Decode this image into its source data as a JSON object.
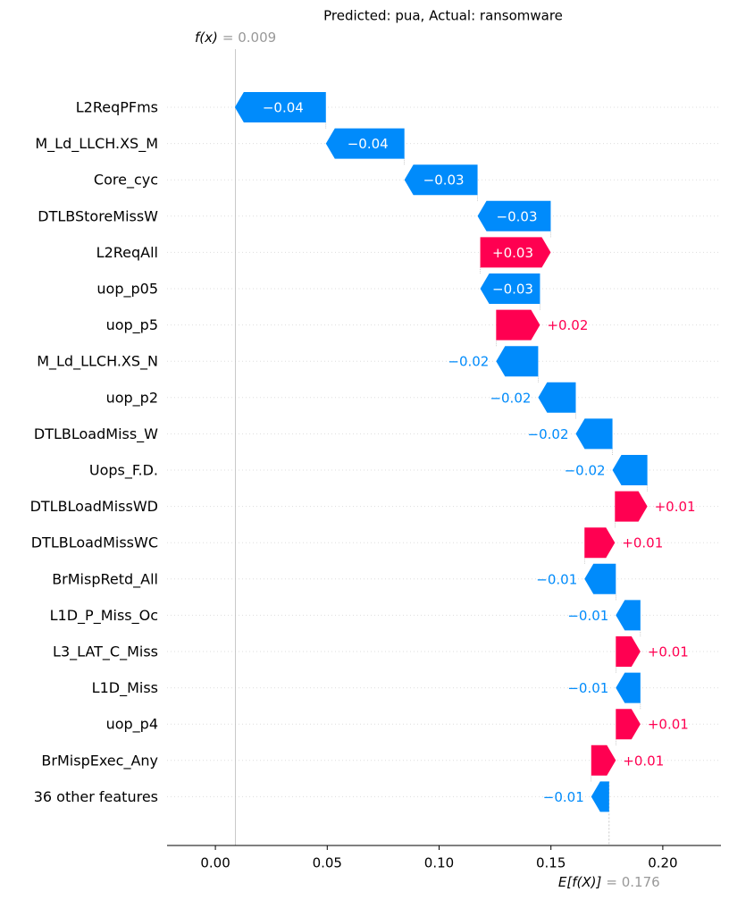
{
  "chart_data": {
    "type": "waterfall",
    "title": "Predicted: pua, Actual: ransomware",
    "output_name": "f(x)",
    "output_value": {
      "value": 0.009,
      "label": "= 0.009"
    },
    "base_name": "E[f(X)]",
    "base_value": {
      "value": 0.176,
      "label": "= 0.176"
    },
    "categories": [
      "L2ReqPFms",
      "M_Ld_LLCH.XS_M",
      "Core_cyc",
      "DTLBStoreMissW",
      "L2ReqAll",
      "uop_p05",
      "uop_p5",
      "M_Ld_LLCH.XS_N",
      "uop_p2",
      "DTLBLoadMiss_W",
      "Uops_F.D.",
      "DTLBLoadMissWD",
      "DTLBLoadMissWC",
      "BrMispRetd_All",
      "L1D_P_Miss_Oc",
      "L3_LAT_C_Miss",
      "L1D_Miss",
      "uop_p4",
      "BrMispExec_Any",
      "36 other features"
    ],
    "values": [
      -0.0407,
      -0.0351,
      -0.0327,
      -0.0327,
      0.0315,
      -0.0267,
      0.0196,
      -0.0188,
      -0.0168,
      -0.0164,
      -0.0156,
      0.0145,
      0.0136,
      -0.014,
      -0.011,
      0.011,
      -0.011,
      0.011,
      0.011,
      -0.008
    ],
    "value_labels": [
      "−0.04",
      "−0.04",
      "−0.03",
      "−0.03",
      "+0.03",
      "−0.03",
      "+0.02",
      "−0.02",
      "−0.02",
      "−0.02",
      "−0.02",
      "+0.01",
      "+0.01",
      "−0.01",
      "−0.01",
      "+0.01",
      "−0.01",
      "+0.01",
      "+0.01",
      "−0.01"
    ],
    "positive_color": "#ff0051",
    "negative_color": "#008bfb",
    "xlim": [
      -0.0216,
      0.226
    ],
    "xticks": [
      {
        "value": 0,
        "label": "0.00"
      },
      {
        "value": 0.05,
        "label": "0.05"
      },
      {
        "value": 0.1,
        "label": "0.10"
      },
      {
        "value": 0.15,
        "label": "0.15"
      },
      {
        "value": 0.2,
        "label": "0.20"
      }
    ]
  }
}
